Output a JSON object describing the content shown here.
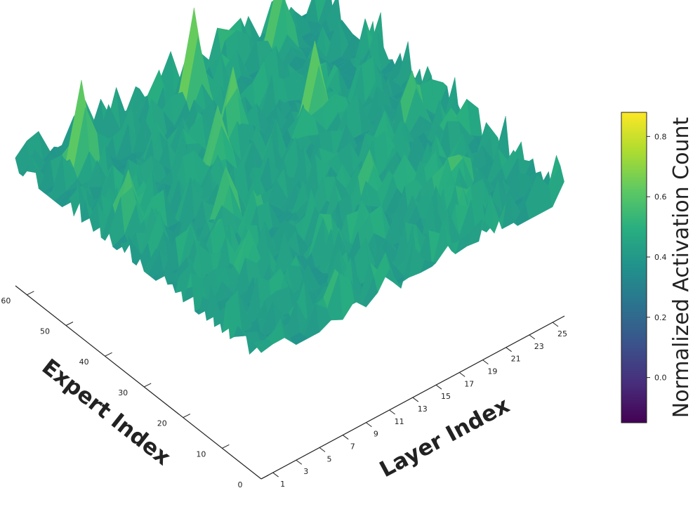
{
  "chart_data": {
    "type": "surface3d",
    "x_axis": {
      "label": "Layer Index",
      "range": [
        0,
        26
      ],
      "ticks": [
        1,
        3,
        5,
        7,
        9,
        11,
        13,
        15,
        17,
        19,
        21,
        23,
        25
      ],
      "tick_labels": [
        "1",
        "3",
        "5",
        "7",
        "9",
        "11",
        "13",
        "15",
        "17",
        "19",
        "21",
        "23",
        "25"
      ]
    },
    "y_axis": {
      "label": "Expert Index",
      "range": [
        0,
        63
      ],
      "ticks": [
        0,
        10,
        20,
        30,
        40,
        50,
        60
      ],
      "tick_labels": [
        "0",
        "10",
        "20",
        "30",
        "40",
        "50",
        "60"
      ]
    },
    "z": {
      "label": "Normalized Activation Count",
      "range": [
        -0.15,
        0.88
      ]
    },
    "colorbar": {
      "label": "Normalized Activation Count",
      "range": [
        -0.15,
        0.88
      ],
      "ticks": [
        0.0,
        0.2,
        0.4,
        0.6,
        0.8
      ],
      "tick_labels": [
        "0.0",
        "0.2",
        "0.4",
        "0.6",
        "0.8"
      ],
      "colormap": "viridis"
    },
    "grid": false,
    "peaks": [
      {
        "layer": 13,
        "expert": 56,
        "value": 0.85
      },
      {
        "layer": 3,
        "expert": 55,
        "value": 0.82
      },
      {
        "layer": 18,
        "expert": 40,
        "value": 0.78
      },
      {
        "layer": 13,
        "expert": 46,
        "value": 0.72
      },
      {
        "layer": 21,
        "expert": 58,
        "value": 0.75
      },
      {
        "layer": 10,
        "expert": 41,
        "value": 0.7
      },
      {
        "layer": 7,
        "expert": 30,
        "value": 0.66
      },
      {
        "layer": 16,
        "expert": 20,
        "value": 0.62
      },
      {
        "layer": 5,
        "expert": 18,
        "value": 0.6
      },
      {
        "layer": 23,
        "expert": 30,
        "value": 0.64
      },
      {
        "layer": 2,
        "expert": 40,
        "value": 0.65
      },
      {
        "layer": 20,
        "expert": 12,
        "value": 0.58
      }
    ],
    "baseline": 0.38,
    "noise_amplitude": 0.22
  }
}
